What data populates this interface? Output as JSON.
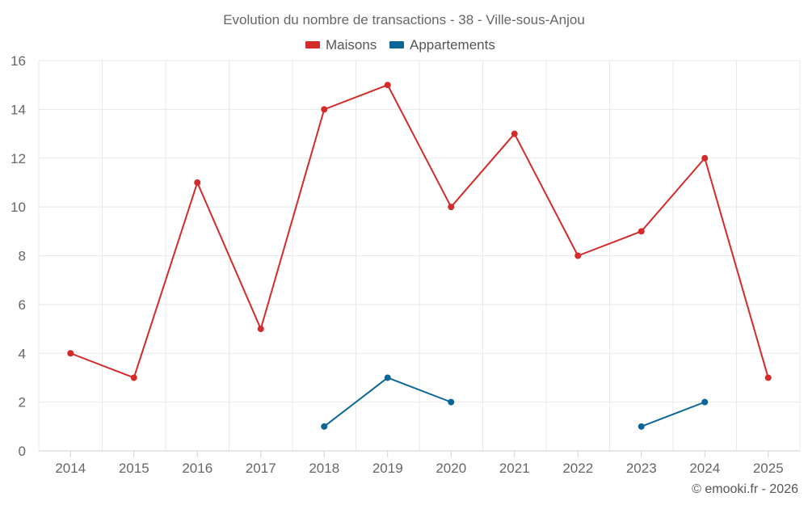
{
  "chart_data": {
    "type": "line",
    "title": "Evolution du nombre de transactions - 38 - Ville-sous-Anjou",
    "categories": [
      "2014",
      "2015",
      "2016",
      "2017",
      "2018",
      "2019",
      "2020",
      "2021",
      "2022",
      "2023",
      "2024",
      "2025"
    ],
    "series": [
      {
        "name": "Maisons",
        "color": "#d42a2a",
        "values": [
          4,
          3,
          11,
          5,
          14,
          15,
          10,
          13,
          8,
          9,
          12,
          3
        ]
      },
      {
        "name": "Appartements",
        "color": "#0a6699",
        "values": [
          null,
          null,
          null,
          null,
          1,
          3,
          2,
          null,
          null,
          1,
          2,
          null
        ]
      }
    ],
    "ylim": [
      0,
      16
    ],
    "yticks": [
      0,
      2,
      4,
      6,
      8,
      10,
      12,
      14,
      16
    ],
    "grid": true,
    "legend_position": "top-center",
    "xlabel": "",
    "ylabel": ""
  },
  "credit": "© emooki.fr - 2026"
}
